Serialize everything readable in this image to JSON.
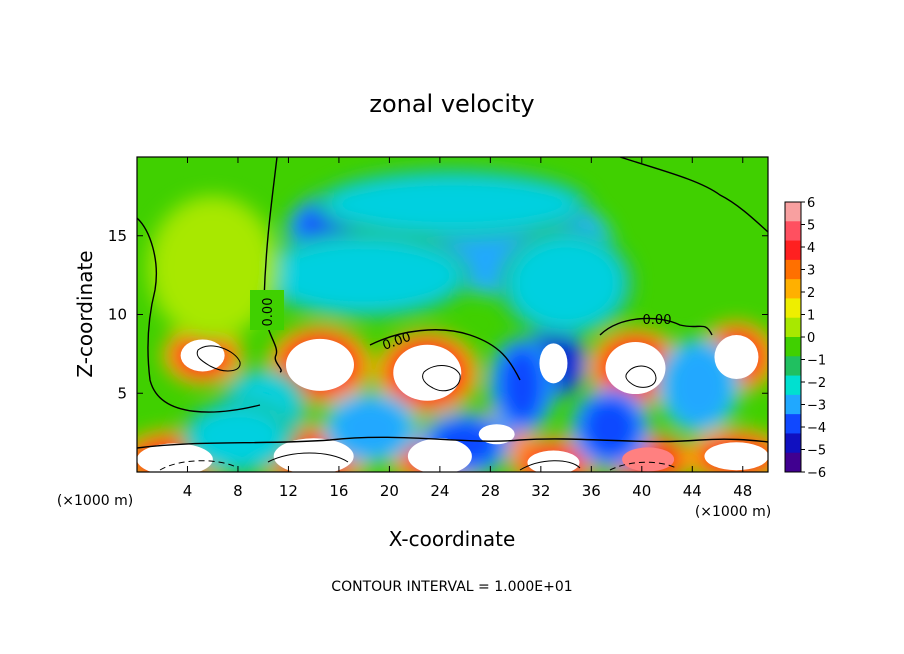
{
  "chart_data": {
    "type": "heatmap",
    "title": "zonal velocity",
    "xlabel": "X-coordinate",
    "ylabel": "Z-coordinate",
    "x_unit": "(×1000 m)",
    "z_unit": "(×1000 m)",
    "xlim": [
      0,
      50
    ],
    "ylim": [
      0,
      20
    ],
    "x_ticks": [
      4,
      8,
      12,
      16,
      20,
      24,
      28,
      32,
      36,
      40,
      44,
      48
    ],
    "y_ticks": [
      5,
      10,
      15
    ],
    "footer": "CONTOUR INTERVAL = 1.000E+01",
    "colorbar": {
      "ticks": [
        6,
        5,
        4,
        3,
        2,
        1,
        0,
        -1,
        -2,
        -3,
        -4,
        -5,
        -6
      ],
      "colors": [
        "#f8a0a0",
        "#ff5060",
        "#ff2020",
        "#ff7000",
        "#ffb000",
        "#eeee00",
        "#a8e800",
        "#40d000",
        "#20c060",
        "#00e0d0",
        "#20a8ff",
        "#1048ff",
        "#1010c0",
        "#400090"
      ]
    },
    "contour_labels": [
      "0.00",
      "0.00",
      "0.00"
    ],
    "fields": [
      {
        "x": 14.5,
        "z": 6.8,
        "value": 7
      },
      {
        "x": 5.2,
        "z": 7.4,
        "value": 7
      },
      {
        "x": 23.0,
        "z": 6.3,
        "value": 7
      },
      {
        "x": 39.5,
        "z": 6.6,
        "value": 7
      },
      {
        "x": 47.5,
        "z": 7.3,
        "value": 7
      },
      {
        "x": 33.0,
        "z": 6.9,
        "value": 4
      },
      {
        "x": 28.5,
        "z": 2.4,
        "value": 6
      },
      {
        "x": 3.0,
        "z": 0.8,
        "value": 7
      },
      {
        "x": 14.0,
        "z": 1.0,
        "value": 7
      },
      {
        "x": 24.0,
        "z": 1.0,
        "value": 7
      },
      {
        "x": 33.0,
        "z": 0.6,
        "value": 6
      },
      {
        "x": 40.5,
        "z": 0.8,
        "value": 5
      },
      {
        "x": 47.5,
        "z": 1.0,
        "value": 7
      },
      {
        "x": 22.0,
        "z": 15.5,
        "value": -5
      },
      {
        "x": 30.0,
        "z": 14.5,
        "value": -4
      },
      {
        "x": 25.0,
        "z": 17.0,
        "value": -3
      },
      {
        "x": 18.0,
        "z": 12.5,
        "value": -3
      },
      {
        "x": 34.0,
        "z": 12.0,
        "value": -3
      },
      {
        "x": 10.0,
        "z": 4.0,
        "value": -3
      },
      {
        "x": 30.5,
        "z": 5.5,
        "value": -5
      },
      {
        "x": 37.5,
        "z": 2.8,
        "value": -5
      },
      {
        "x": 44.5,
        "z": 5.5,
        "value": -4
      },
      {
        "x": 18.5,
        "z": 2.8,
        "value": -4
      },
      {
        "x": 26.0,
        "z": 1.8,
        "value": -5
      },
      {
        "x": 8.0,
        "z": 2.2,
        "value": -3
      },
      {
        "x": 6.0,
        "z": 13.0,
        "value": 1
      }
    ]
  }
}
